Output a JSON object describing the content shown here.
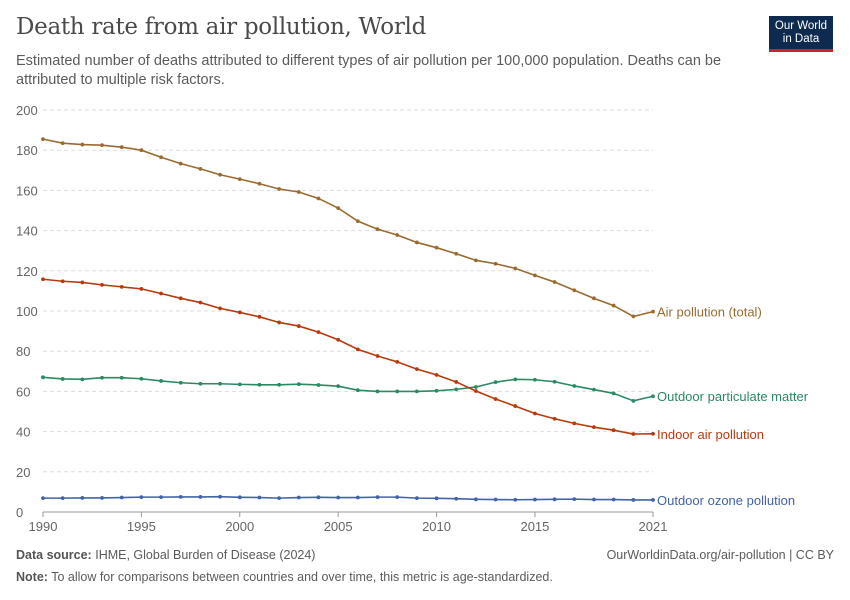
{
  "title": "Death rate from air pollution, World",
  "subtitle": "Estimated number of deaths attributed to different types of air pollution per 100,000 population. Deaths can be attributed to multiple risk factors.",
  "logo": {
    "line1": "Our World",
    "line2": "in Data"
  },
  "footer": {
    "source_label": "Data source:",
    "source": "IHME, Global Burden of Disease (2024)",
    "url": "OurWorldinData.org/air-pollution | CC BY",
    "note_label": "Note:",
    "note": "To allow for comparisons between countries and over time, this metric is age-standardized."
  },
  "chart_data": {
    "type": "line",
    "title": "Death rate from air pollution, World",
    "xlabel": "",
    "ylabel": "",
    "xlim": [
      1990,
      2021
    ],
    "ylim": [
      0,
      200
    ],
    "yticks": [
      0,
      20,
      40,
      60,
      80,
      100,
      120,
      140,
      160,
      180,
      200
    ],
    "xticks": [
      1990,
      1995,
      2000,
      2005,
      2010,
      2015,
      2021
    ],
    "grid": "horizontal dashed",
    "legend": "right, inline labels",
    "x": [
      1990,
      1991,
      1992,
      1993,
      1994,
      1995,
      1996,
      1997,
      1998,
      1999,
      2000,
      2001,
      2002,
      2003,
      2004,
      2005,
      2006,
      2007,
      2008,
      2009,
      2010,
      2011,
      2012,
      2013,
      2014,
      2015,
      2016,
      2017,
      2018,
      2019,
      2020,
      2021
    ],
    "series": [
      {
        "name": "Air pollution (total)",
        "color": "#9a6b30",
        "values": [
          185.5,
          183.5,
          182.8,
          182.5,
          181.5,
          180,
          176.5,
          173.3,
          170.7,
          167.8,
          165.6,
          163.3,
          160.7,
          159.2,
          156,
          151.2,
          144.7,
          140.7,
          137.8,
          134.1,
          131.5,
          128.5,
          125.2,
          123.5,
          121.2,
          117.7,
          114.4,
          110.3,
          106.3,
          102.7,
          97.3,
          99.7
        ]
      },
      {
        "name": "Outdoor particulate matter",
        "color": "#2a8a63",
        "values": [
          67,
          66.2,
          66,
          66.8,
          66.8,
          66.3,
          65.2,
          64.3,
          63.8,
          63.8,
          63.5,
          63.3,
          63.3,
          63.6,
          63.2,
          62.6,
          60.6,
          60,
          60,
          60,
          60.3,
          61,
          62.2,
          64.6,
          66,
          65.8,
          64.8,
          62.7,
          60.9,
          59,
          55.3,
          57.6
        ]
      },
      {
        "name": "Indoor air pollution",
        "color": "#b83a0c",
        "values": [
          115.8,
          114.8,
          114.2,
          113,
          112,
          111,
          108.7,
          106.3,
          104.2,
          101.3,
          99.3,
          97.1,
          94.3,
          92.5,
          89.5,
          85.7,
          80.9,
          77.6,
          74.7,
          71.1,
          68.2,
          64.7,
          60.2,
          56.2,
          52.7,
          49,
          46.4,
          44.1,
          42.2,
          40.7,
          38.8,
          38.9
        ]
      },
      {
        "name": "Outdoor ozone pollution",
        "color": "#4263a8",
        "values": [
          6.9,
          6.9,
          7,
          7,
          7.2,
          7.4,
          7.4,
          7.5,
          7.5,
          7.6,
          7.3,
          7.2,
          6.9,
          7.2,
          7.3,
          7.2,
          7.2,
          7.4,
          7.4,
          6.9,
          6.8,
          6.6,
          6.3,
          6.2,
          6.1,
          6.2,
          6.3,
          6.4,
          6.2,
          6.2,
          6,
          6
        ]
      }
    ]
  }
}
